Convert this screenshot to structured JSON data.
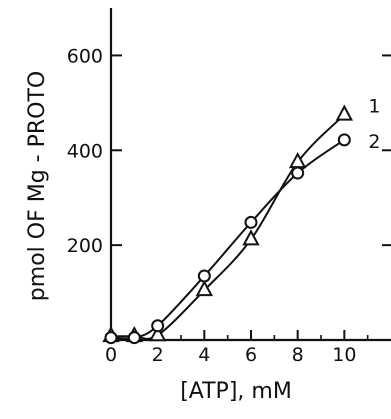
{
  "chart_data": {
    "type": "line",
    "title": "",
    "xlabel": "[ATP], mM",
    "ylabel": "pmol OF Mg - PROTO",
    "xlim": [
      0,
      12
    ],
    "ylim": [
      0,
      700
    ],
    "x_ticks": [
      0,
      2,
      4,
      6,
      8,
      10
    ],
    "x_tick_labels": [
      "0",
      "2",
      "4",
      "6",
      "8",
      "10"
    ],
    "y_ticks": [
      200,
      400,
      600
    ],
    "y_tick_labels": [
      "200",
      "400",
      "600"
    ],
    "grid": false,
    "series": [
      {
        "name": "1",
        "marker": "triangle",
        "x": [
          0,
          1,
          2,
          4,
          6,
          8,
          10
        ],
        "y": [
          8,
          8,
          10,
          105,
          212,
          375,
          475
        ]
      },
      {
        "name": "2",
        "marker": "circle",
        "x": [
          0,
          1,
          2,
          4,
          6,
          8,
          10
        ],
        "y": [
          5,
          5,
          30,
          135,
          248,
          352,
          422
        ]
      }
    ],
    "colors": {
      "ink": "#111111",
      "background": "#ffffff"
    }
  }
}
